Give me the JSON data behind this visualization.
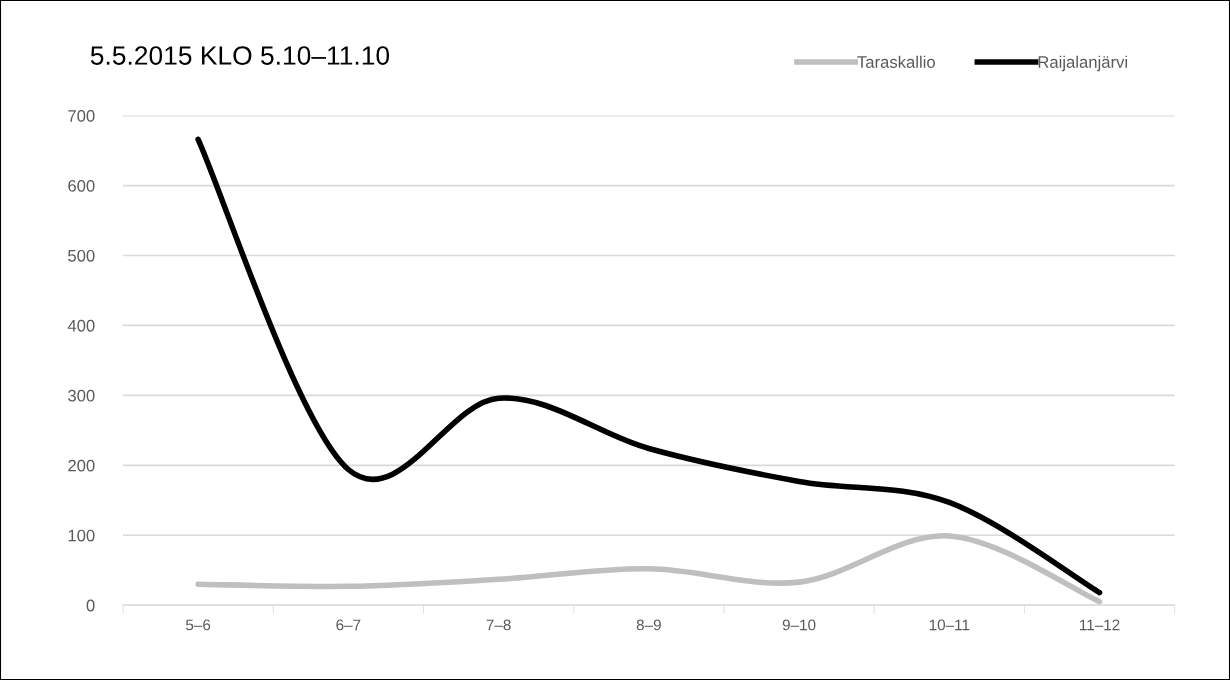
{
  "chart_data": {
    "type": "line",
    "title": "5.5.2015 KLO 5.10–11.10",
    "categories": [
      "5–6",
      "6–7",
      "7–8",
      "8–9",
      "9–10",
      "10–11",
      "11–12"
    ],
    "series": [
      {
        "name": "Taraskallio",
        "color": "#bfbfbf",
        "values": [
          30,
          27,
          37,
          52,
          33,
          99,
          5
        ]
      },
      {
        "name": "Raijalanjärvi",
        "color": "#000000",
        "values": [
          666,
          194,
          296,
          224,
          177,
          147,
          18
        ]
      }
    ],
    "ylim": [
      0,
      700
    ],
    "yticks": [
      0,
      100,
      200,
      300,
      400,
      500,
      600,
      700
    ],
    "grid": "y",
    "legend": "top right",
    "line_style": "solid",
    "marker": "none"
  }
}
